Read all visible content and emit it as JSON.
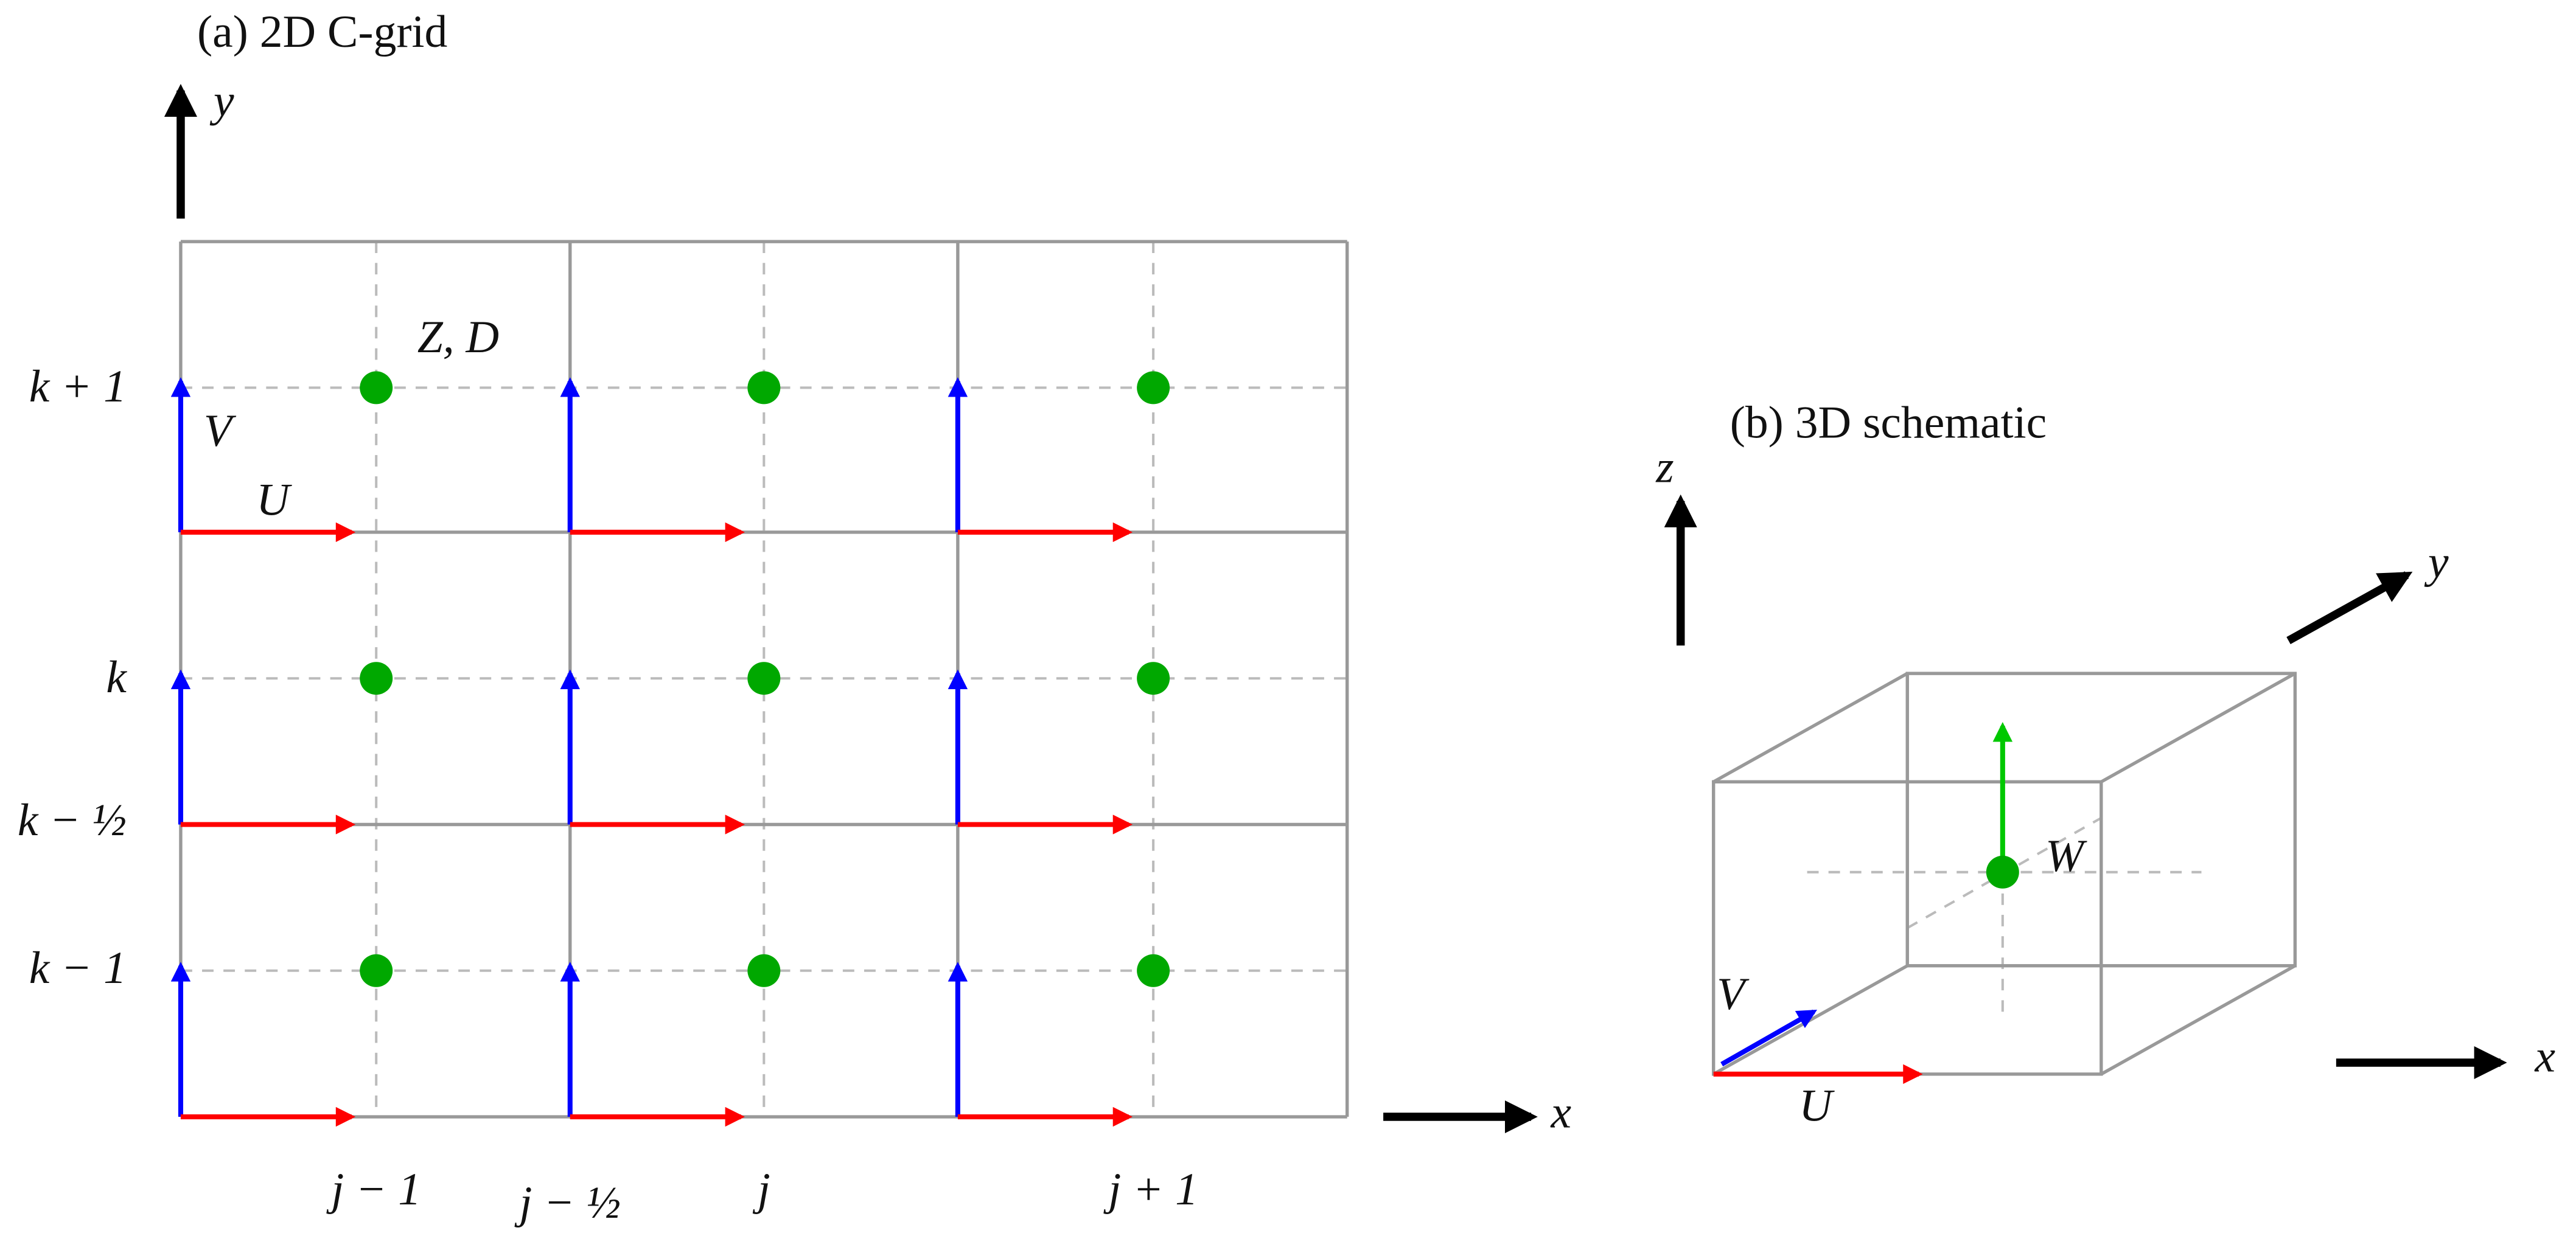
{
  "panel_a": {
    "title": "(a) 2D C-grid",
    "axis_y": "y",
    "axis_x": "x",
    "label_v": "V",
    "label_u": "U",
    "label_zd": "Z, D",
    "row_labels": [
      "k + 1",
      "k",
      "k − ½",
      "k − 1"
    ],
    "column_labels": [
      "j − 1",
      "j − ½",
      "j",
      "j + 1"
    ]
  },
  "panel_b": {
    "title": "(b) 3D schematic",
    "axis_z": "z",
    "axis_y": "y",
    "axis_x": "x",
    "label_v": "V",
    "label_u": "U",
    "label_w": "W"
  }
}
